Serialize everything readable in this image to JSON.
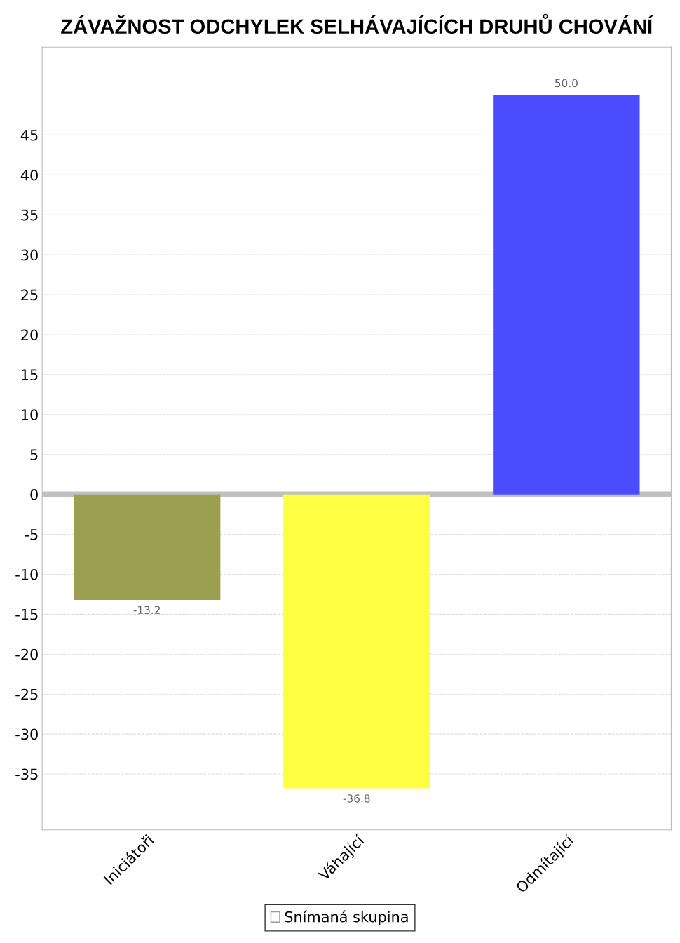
{
  "chart_data": {
    "type": "bar",
    "title": "ZÁVAŽNOST ODCHYLEK SELHÁVAJÍCÍCH DRUHŮ CHOVÁNÍ",
    "categories": [
      "Iniciátoři",
      "Váhající",
      "Odmítající"
    ],
    "series": [
      {
        "name": "Snímaná skupina",
        "color": "#ffffff",
        "colors": [
          "#9aa04f",
          "#ffff44",
          "#4c4cff"
        ],
        "values": [
          -13.2,
          -36.8,
          50.0
        ],
        "value_labels": [
          "-13.2",
          "-36.8",
          "50.0"
        ]
      }
    ],
    "ylim": [
      -42,
      56
    ],
    "yticks": [
      -35,
      -30,
      -25,
      -20,
      -15,
      -10,
      -5,
      0,
      5,
      10,
      15,
      20,
      25,
      30,
      35,
      40,
      45
    ],
    "ref_lines": [
      {
        "axis": "y",
        "value": 0,
        "color": "#c0c0c0"
      }
    ],
    "grid": "y",
    "legend": "bottom"
  }
}
